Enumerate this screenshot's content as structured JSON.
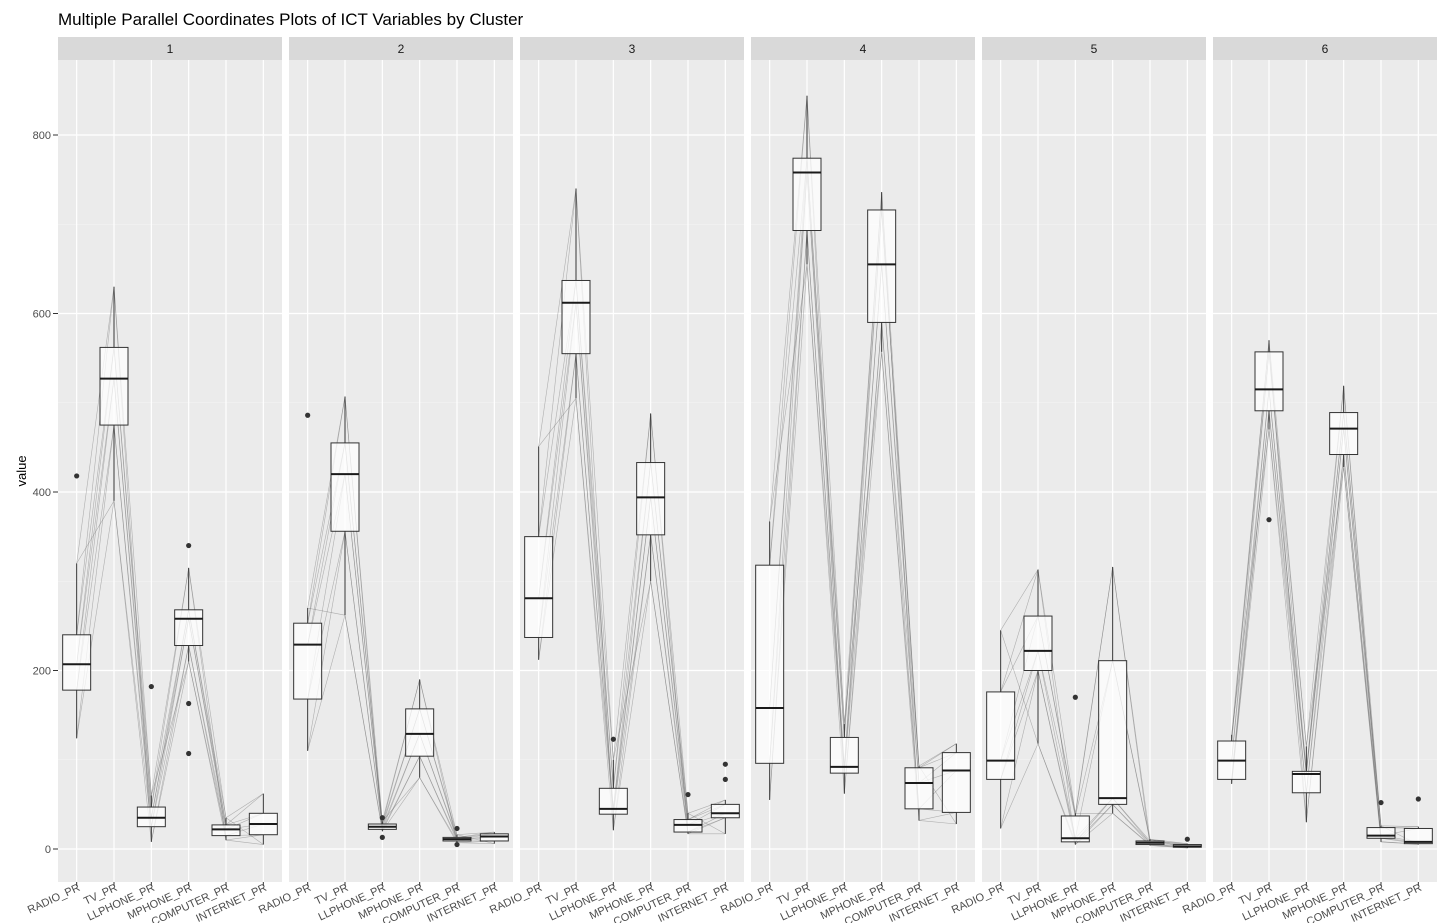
{
  "chart_data": {
    "type": "boxplot",
    "title": "Multiple Parallel Coordinates Plots of ICT Variables by Cluster",
    "ylabel": "value",
    "xlabel": "",
    "ylim": [
      -40,
      880
    ],
    "yticks": [
      0,
      200,
      400,
      600,
      800
    ],
    "grid": true,
    "categories": [
      "RADIO_PR",
      "TV_PR",
      "LLPHONE_PR",
      "MPHONE_PR",
      "COMPUTER_PR",
      "INTERNET_PR"
    ],
    "panels": [
      {
        "label": "1",
        "boxes": [
          {
            "category": "RADIO_PR",
            "min": 124,
            "q1": 178,
            "median": 207,
            "q3": 240,
            "max": 320,
            "outliers": [
              418
            ]
          },
          {
            "category": "TV_PR",
            "min": 390,
            "q1": 475,
            "median": 527,
            "q3": 562,
            "max": 630,
            "outliers": []
          },
          {
            "category": "LLPHONE_PR",
            "min": 8,
            "q1": 25,
            "median": 35,
            "q3": 47,
            "max": 60,
            "outliers": [
              182
            ]
          },
          {
            "category": "MPHONE_PR",
            "min": 210,
            "q1": 228,
            "median": 258,
            "q3": 268,
            "max": 315,
            "outliers": [
              340,
              163,
              107
            ]
          },
          {
            "category": "COMPUTER_PR",
            "min": 10,
            "q1": 15,
            "median": 22,
            "q3": 27,
            "max": 35,
            "outliers": []
          },
          {
            "category": "INTERNET_PR",
            "min": 5,
            "q1": 16,
            "median": 28,
            "q3": 40,
            "max": 62,
            "outliers": []
          }
        ]
      },
      {
        "label": "2",
        "boxes": [
          {
            "category": "RADIO_PR",
            "min": 110,
            "q1": 168,
            "median": 229,
            "q3": 253,
            "max": 270,
            "outliers": [
              486
            ]
          },
          {
            "category": "TV_PR",
            "min": 262,
            "q1": 356,
            "median": 420,
            "q3": 455,
            "max": 507,
            "outliers": []
          },
          {
            "category": "LLPHONE_PR",
            "min": 20,
            "q1": 22,
            "median": 25,
            "q3": 28,
            "max": 31,
            "outliers": [
              35,
              13
            ]
          },
          {
            "category": "MPHONE_PR",
            "min": 80,
            "q1": 104,
            "median": 129,
            "q3": 157,
            "max": 190,
            "outliers": []
          },
          {
            "category": "COMPUTER_PR",
            "min": 7,
            "q1": 9,
            "median": 11,
            "q3": 13,
            "max": 16,
            "outliers": [
              23,
              5
            ]
          },
          {
            "category": "INTERNET_PR",
            "min": 6,
            "q1": 9,
            "median": 14,
            "q3": 17,
            "max": 19,
            "outliers": []
          }
        ]
      },
      {
        "label": "3",
        "boxes": [
          {
            "category": "RADIO_PR",
            "min": 212,
            "q1": 237,
            "median": 281,
            "q3": 350,
            "max": 451,
            "outliers": []
          },
          {
            "category": "TV_PR",
            "min": 505,
            "q1": 555,
            "median": 612,
            "q3": 637,
            "max": 740,
            "outliers": []
          },
          {
            "category": "LLPHONE_PR",
            "min": 21,
            "q1": 39,
            "median": 45,
            "q3": 68,
            "max": 100,
            "outliers": [
              123
            ]
          },
          {
            "category": "MPHONE_PR",
            "min": 300,
            "q1": 352,
            "median": 394,
            "q3": 433,
            "max": 488,
            "outliers": []
          },
          {
            "category": "COMPUTER_PR",
            "min": 17,
            "q1": 19,
            "median": 27,
            "q3": 33,
            "max": 40,
            "outliers": [
              61
            ]
          },
          {
            "category": "INTERNET_PR",
            "min": 17,
            "q1": 35,
            "median": 40,
            "q3": 50,
            "max": 55,
            "outliers": [
              95,
              78
            ]
          }
        ]
      },
      {
        "label": "4",
        "boxes": [
          {
            "category": "RADIO_PR",
            "min": 55,
            "q1": 96,
            "median": 158,
            "q3": 318,
            "max": 367,
            "outliers": []
          },
          {
            "category": "TV_PR",
            "min": 655,
            "q1": 693,
            "median": 758,
            "q3": 774,
            "max": 844,
            "outliers": []
          },
          {
            "category": "LLPHONE_PR",
            "min": 62,
            "q1": 85,
            "median": 92,
            "q3": 125,
            "max": 140,
            "outliers": []
          },
          {
            "category": "MPHONE_PR",
            "min": 557,
            "q1": 590,
            "median": 655,
            "q3": 716,
            "max": 736,
            "outliers": []
          },
          {
            "category": "COMPUTER_PR",
            "min": 32,
            "q1": 45,
            "median": 74,
            "q3": 91,
            "max": 93,
            "outliers": []
          },
          {
            "category": "INTERNET_PR",
            "min": 28,
            "q1": 41,
            "median": 88,
            "q3": 108,
            "max": 118,
            "outliers": []
          }
        ]
      },
      {
        "label": "5",
        "boxes": [
          {
            "category": "RADIO_PR",
            "min": 23,
            "q1": 78,
            "median": 99,
            "q3": 176,
            "max": 245,
            "outliers": []
          },
          {
            "category": "TV_PR",
            "min": 118,
            "q1": 200,
            "median": 222,
            "q3": 261,
            "max": 313,
            "outliers": []
          },
          {
            "category": "LLPHONE_PR",
            "min": 5,
            "q1": 8,
            "median": 12,
            "q3": 37,
            "max": 40,
            "outliers": [
              170
            ]
          },
          {
            "category": "MPHONE_PR",
            "min": 40,
            "q1": 50,
            "median": 57,
            "q3": 211,
            "max": 316,
            "outliers": []
          },
          {
            "category": "COMPUTER_PR",
            "min": 4,
            "q1": 5,
            "median": 7,
            "q3": 9,
            "max": 11,
            "outliers": []
          },
          {
            "category": "INTERNET_PR",
            "min": 1,
            "q1": 2,
            "median": 3,
            "q3": 5,
            "max": 6,
            "outliers": [
              11
            ]
          }
        ]
      },
      {
        "label": "6",
        "boxes": [
          {
            "category": "RADIO_PR",
            "min": 73,
            "q1": 78,
            "median": 99,
            "q3": 121,
            "max": 128,
            "outliers": []
          },
          {
            "category": "TV_PR",
            "min": 470,
            "q1": 491,
            "median": 515,
            "q3": 557,
            "max": 570,
            "outliers": [
              369
            ]
          },
          {
            "category": "LLPHONE_PR",
            "min": 30,
            "q1": 63,
            "median": 84,
            "q3": 87,
            "max": 115,
            "outliers": []
          },
          {
            "category": "MPHONE_PR",
            "min": 428,
            "q1": 442,
            "median": 471,
            "q3": 489,
            "max": 519,
            "outliers": []
          },
          {
            "category": "COMPUTER_PR",
            "min": 8,
            "q1": 12,
            "median": 15,
            "q3": 24,
            "max": 26,
            "outliers": [
              52
            ]
          },
          {
            "category": "INTERNET_PR",
            "min": 5,
            "q1": 6,
            "median": 8,
            "q3": 23,
            "max": 25,
            "outliers": [
              56
            ]
          }
        ]
      }
    ]
  }
}
